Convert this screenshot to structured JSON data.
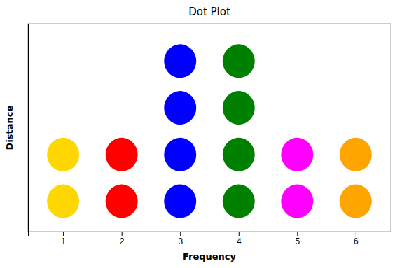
{
  "chart_data": {
    "type": "scatter",
    "title": "Dot Plot",
    "xlabel": "Frequency",
    "ylabel": "Distance",
    "x": [
      1,
      1,
      2,
      2,
      3,
      3,
      3,
      3,
      4,
      4,
      4,
      4,
      5,
      5,
      6,
      6
    ],
    "values": [
      1,
      2,
      1,
      2,
      1,
      2,
      3,
      4,
      1,
      2,
      3,
      4,
      1,
      2,
      1,
      2
    ],
    "colors": [
      "#ffd700",
      "#ffd700",
      "#ff0000",
      "#ff0000",
      "#0000ff",
      "#0000ff",
      "#0000ff",
      "#0000ff",
      "#008000",
      "#008000",
      "#008000",
      "#008000",
      "#ff00ff",
      "#ff00ff",
      "#ffa500",
      "#ffa500"
    ],
    "xlim": [
      0.4,
      6.6
    ],
    "ylim": [
      0.35,
      4.8
    ],
    "xticks": [
      1,
      2,
      3,
      4,
      5,
      6
    ],
    "tick_labels": "x",
    "grid": false
  }
}
